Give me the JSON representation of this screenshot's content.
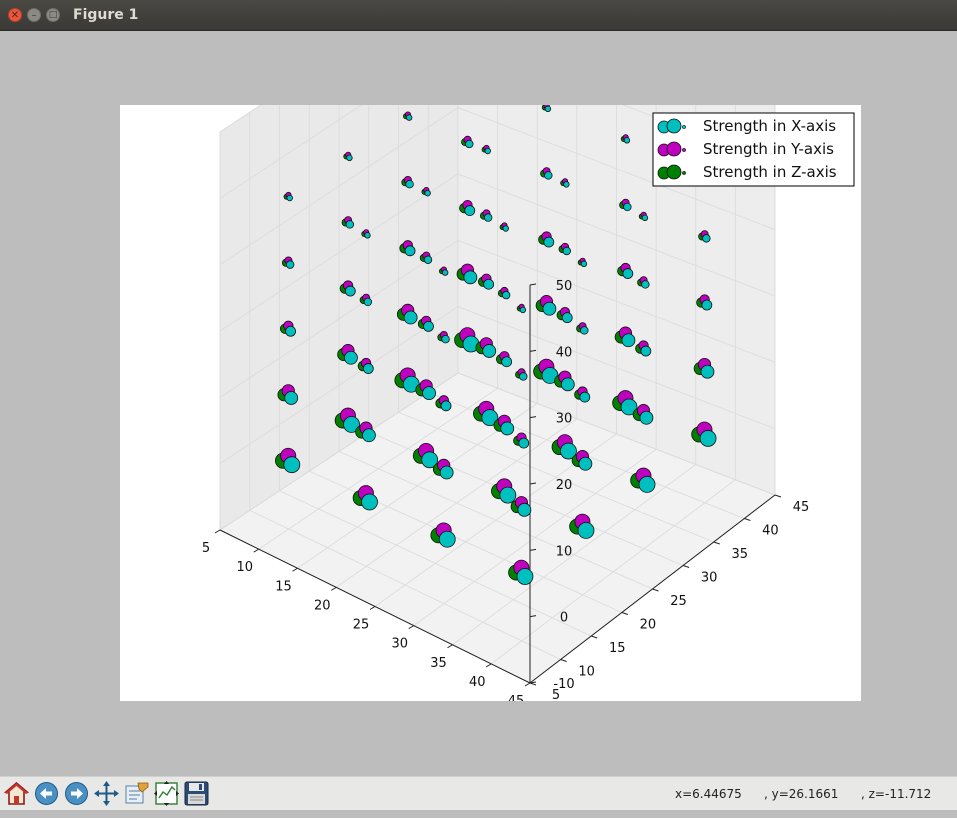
{
  "window": {
    "title": "Figure 1"
  },
  "toolbar": {
    "buttons": [
      {
        "name": "home-button",
        "icon": "home-icon"
      },
      {
        "name": "back-button",
        "icon": "arrow-left-icon"
      },
      {
        "name": "forward-button",
        "icon": "arrow-right-icon"
      },
      {
        "name": "pan-button",
        "icon": "move-icon"
      },
      {
        "name": "zoom-button",
        "icon": "zoom-rect-icon"
      },
      {
        "name": "subplots-button",
        "icon": "subplots-icon"
      },
      {
        "name": "save-button",
        "icon": "floppy-disk-icon"
      }
    ],
    "coords": {
      "x": "x=6.44675",
      "y": ", y=26.1661",
      "z": ", z=-11.712"
    }
  },
  "chart_data": {
    "type": "scatter",
    "projection": "3d",
    "grid": true,
    "legend_position": "top-right",
    "x_ticks": [
      5,
      10,
      15,
      20,
      25,
      30,
      35,
      40,
      45
    ],
    "y_ticks": [
      5,
      10,
      15,
      20,
      25,
      30,
      35,
      40,
      45
    ],
    "z_ticks": [
      -10,
      0,
      10,
      20,
      30,
      40,
      50
    ],
    "xlim": [
      5,
      45
    ],
    "ylim": [
      5,
      45
    ],
    "zlim": [
      -10,
      50
    ],
    "grid_points": {
      "x": [
        10,
        20,
        30,
        40
      ],
      "y": [
        10,
        20,
        30,
        40
      ],
      "z": [
        0,
        10,
        20,
        30,
        40
      ]
    },
    "series": [
      {
        "name": "Strength in X-axis",
        "color": "#00bfbf"
      },
      {
        "name": "Strength in Y-axis",
        "color": "#bf00bf"
      },
      {
        "name": "Strength in Z-axis",
        "color": "#008000"
      }
    ]
  }
}
